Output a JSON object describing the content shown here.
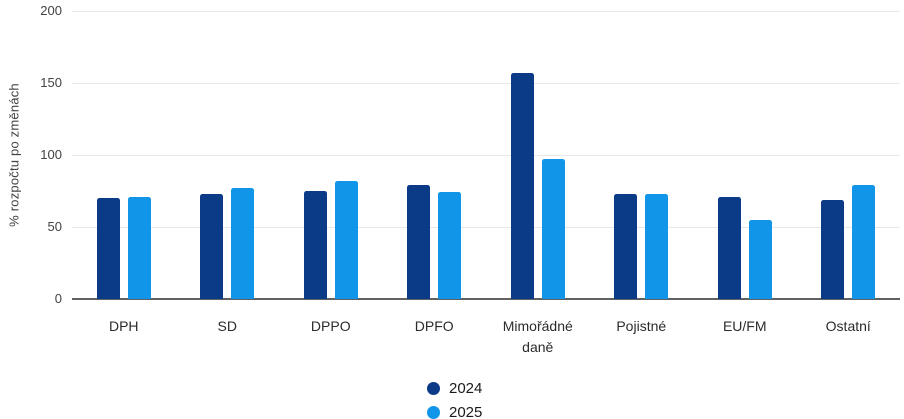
{
  "chart_data": {
    "type": "bar",
    "title": "",
    "xlabel": "",
    "ylabel": "% rozpočtu po změnách",
    "categories": [
      "DPH",
      "SD",
      "DPPO",
      "DPFO",
      "Mimořádné daně",
      "Pojistné",
      "EU/FM",
      "Ostatní"
    ],
    "series": [
      {
        "name": "2024",
        "color": "#0b3b87",
        "values": [
          70,
          73,
          75,
          79,
          157,
          73,
          71,
          69
        ]
      },
      {
        "name": "2025",
        "color": "#1095e8",
        "values": [
          71,
          77,
          82,
          74,
          97,
          73,
          55,
          79
        ]
      }
    ],
    "ylim": [
      0,
      200
    ],
    "yticks": [
      0,
      50,
      100,
      150,
      200
    ],
    "grid": true,
    "legend_position": "bottom-center",
    "legend_marker": "circle",
    "grid_color": "#e8e8e8",
    "axis_color": "#616161",
    "tick_text_color": "#424242",
    "category_text_color": "#2b2b2b"
  }
}
